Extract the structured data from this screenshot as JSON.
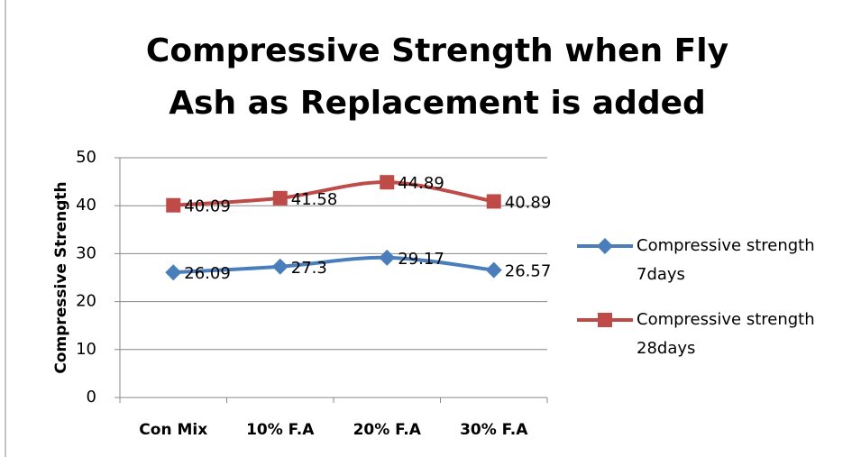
{
  "chart_data": {
    "type": "line",
    "title": "Compressive Strength when Fly Ash as Replacement is added",
    "y_label": "Compressive Strength",
    "categories": [
      "Con Mix",
      "10% F.A",
      "20% F.A",
      "30% F.A"
    ],
    "series": [
      {
        "name": "Compressive strength 7days",
        "color": "#4a7ebb",
        "marker": "diamond",
        "values": [
          26.09,
          27.3,
          29.17,
          26.57
        ]
      },
      {
        "name": "Compressive strength 28days",
        "color": "#be4b48",
        "marker": "square",
        "values": [
          40.09,
          41.58,
          44.89,
          40.89
        ]
      }
    ],
    "ylim": [
      0,
      50
    ],
    "yticks": [
      0,
      10,
      20,
      30,
      40,
      50
    ],
    "grid": true,
    "smooth": true,
    "legend": "right"
  }
}
